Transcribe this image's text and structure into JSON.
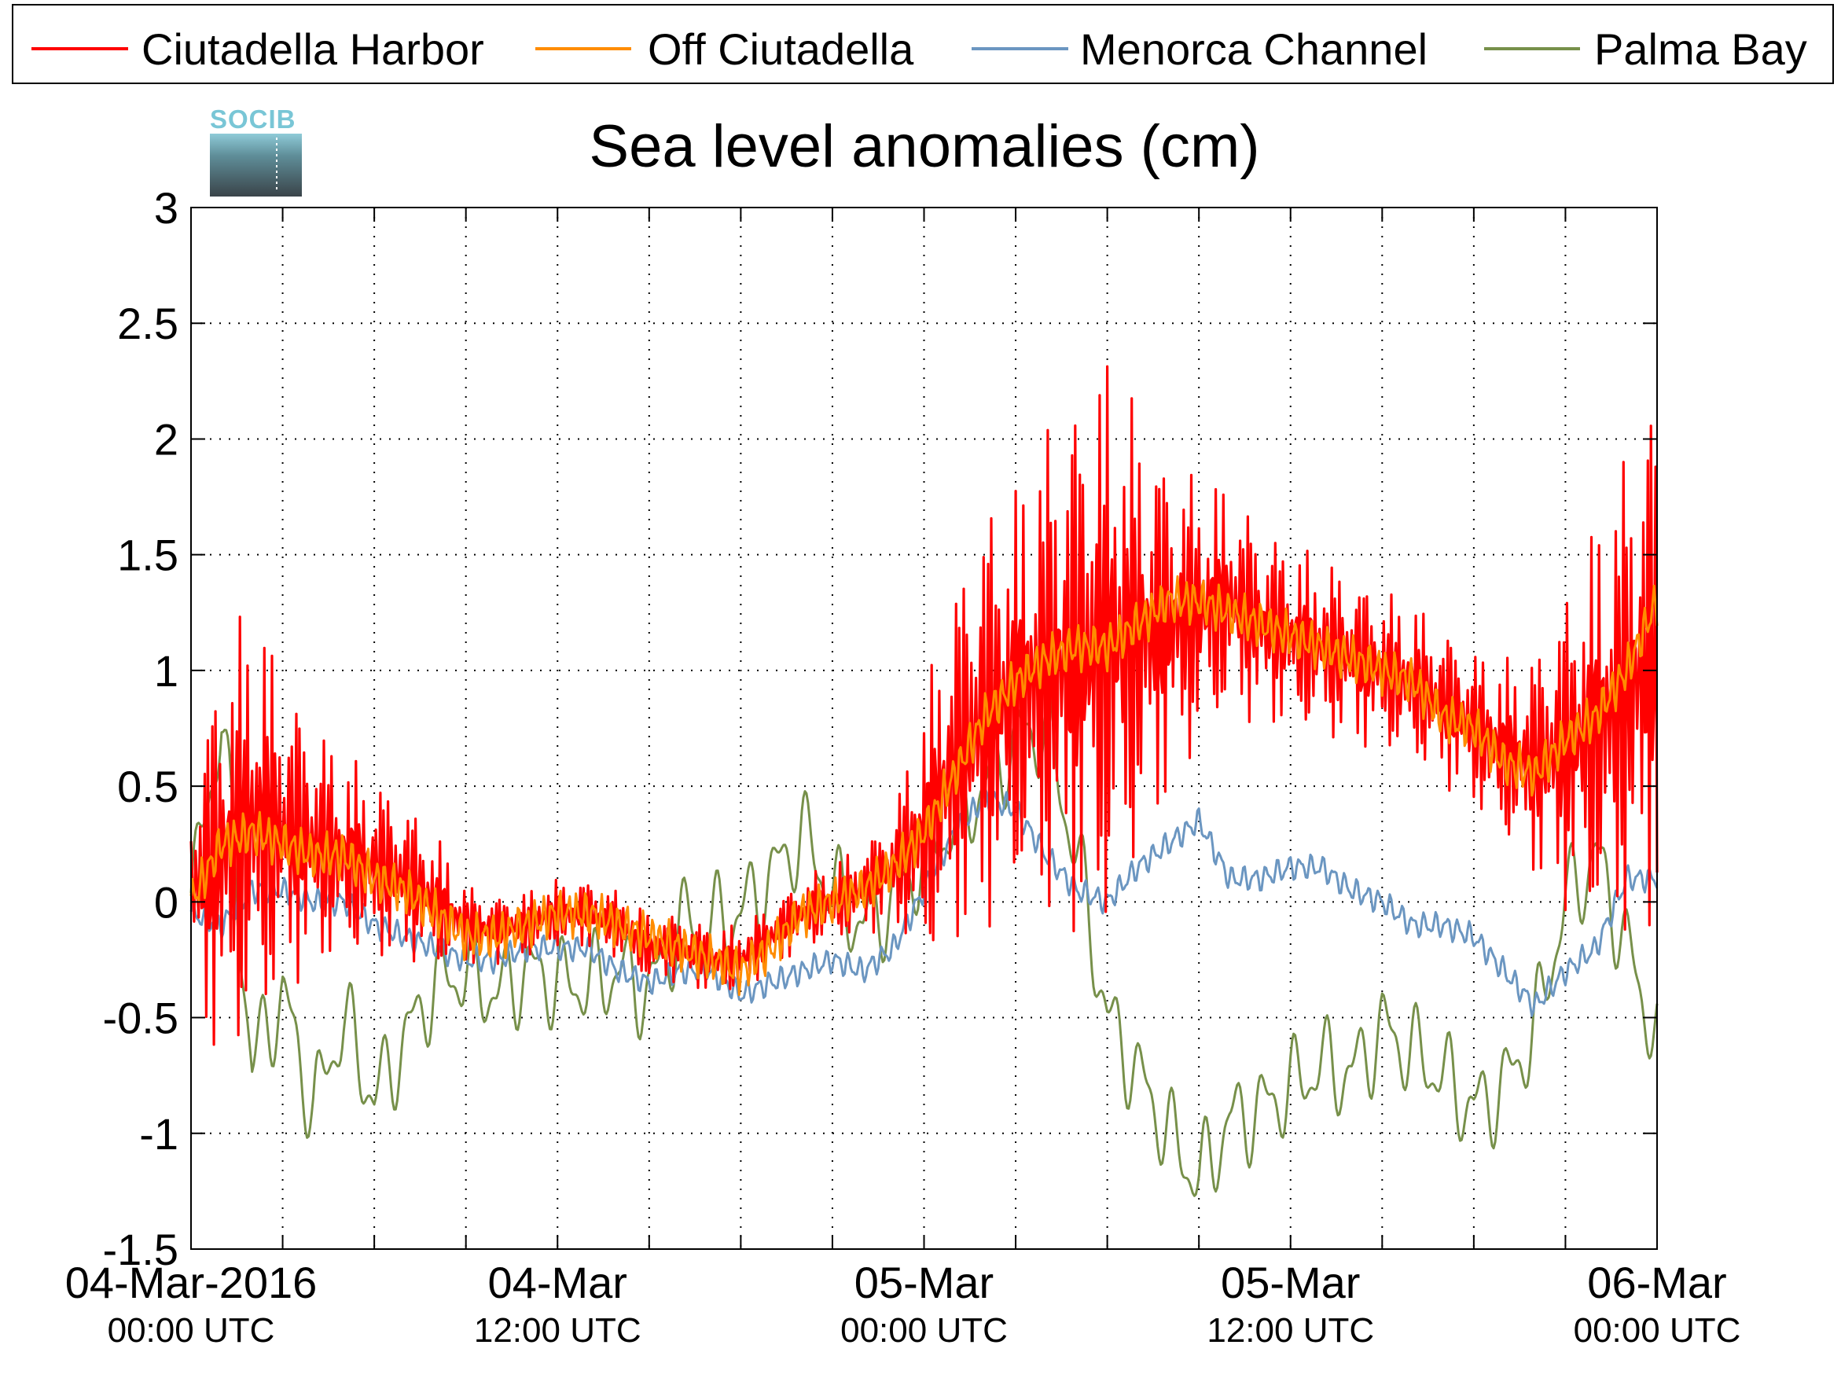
{
  "logo": {
    "text": "SOCIB",
    "color": "#79c6d6"
  },
  "chart_data": {
    "type": "line",
    "title": "Sea level anomalies (cm)",
    "xlabel": "",
    "ylabel": "",
    "x_range_hours": [
      0,
      48
    ],
    "ylim": [
      -1.5,
      3
    ],
    "yticks": [
      -1.5,
      -1,
      -0.5,
      0,
      0.5,
      1,
      1.5,
      2,
      2.5,
      3
    ],
    "ytick_labels": [
      "-1.5",
      "-1",
      "-0.5",
      "0",
      "0.5",
      "1",
      "1.5",
      "2",
      "2.5",
      "3"
    ],
    "x_minor_ticks_hours": [
      3,
      6,
      9,
      15,
      18,
      21,
      27,
      30,
      33,
      39,
      42,
      45
    ],
    "xticks": [
      {
        "hour": 0,
        "label": "04-Mar-2016",
        "sublabel": "00:00 UTC"
      },
      {
        "hour": 12,
        "label": "04-Mar",
        "sublabel": "12:00 UTC"
      },
      {
        "hour": 24,
        "label": "05-Mar",
        "sublabel": "00:00 UTC"
      },
      {
        "hour": 36,
        "label": "05-Mar",
        "sublabel": "12:00 UTC"
      },
      {
        "hour": 48,
        "label": "06-Mar",
        "sublabel": "00:00 UTC"
      }
    ],
    "grid": true,
    "legend_position": "top",
    "series": [
      {
        "name": "Ciutadella Harbor",
        "color": "#ff0000",
        "x_hours": [
          0,
          1,
          2,
          3,
          4,
          5,
          6,
          7,
          8,
          9,
          10,
          11,
          12,
          13,
          14,
          15,
          16,
          17,
          18,
          19,
          20,
          21,
          22,
          23,
          24,
          25,
          26,
          27,
          28,
          29,
          30,
          31,
          32,
          33,
          34,
          35,
          36,
          37,
          38,
          39,
          40,
          41,
          42,
          43,
          44,
          45,
          46,
          47,
          48
        ],
        "mean": [
          0.05,
          0.2,
          0.35,
          0.3,
          0.25,
          0.2,
          0.15,
          0.1,
          0.0,
          -0.1,
          -0.12,
          -0.1,
          -0.05,
          -0.05,
          -0.1,
          -0.2,
          -0.2,
          -0.25,
          -0.25,
          -0.15,
          -0.05,
          0.0,
          0.05,
          0.15,
          0.3,
          0.6,
          0.8,
          0.9,
          1.0,
          1.05,
          1.1,
          1.15,
          1.2,
          1.25,
          1.3,
          1.2,
          1.15,
          1.1,
          1.05,
          1.0,
          0.95,
          0.85,
          0.75,
          0.65,
          0.6,
          0.65,
          0.75,
          0.9,
          1.1
        ],
        "amplitude": [
          0.55,
          0.9,
          1.0,
          0.7,
          0.55,
          0.45,
          0.4,
          0.35,
          0.3,
          0.18,
          0.15,
          0.15,
          0.15,
          0.15,
          0.15,
          0.15,
          0.15,
          0.15,
          0.15,
          0.15,
          0.15,
          0.18,
          0.2,
          0.25,
          0.6,
          0.8,
          0.95,
          0.9,
          1.1,
          1.2,
          1.3,
          1.0,
          0.75,
          0.6,
          0.5,
          0.45,
          0.4,
          0.4,
          0.38,
          0.35,
          0.35,
          0.35,
          0.35,
          0.4,
          0.5,
          0.7,
          0.9,
          1.1,
          1.2
        ]
      },
      {
        "name": "Off Ciutadella",
        "color": "#ff8c00",
        "x_hours": [
          0,
          1,
          2,
          3,
          4,
          5,
          6,
          7,
          8,
          9,
          10,
          11,
          12,
          13,
          14,
          15,
          16,
          17,
          18,
          19,
          20,
          21,
          22,
          23,
          24,
          25,
          26,
          27,
          28,
          29,
          30,
          31,
          32,
          33,
          34,
          35,
          36,
          37,
          38,
          39,
          40,
          41,
          42,
          43,
          44,
          45,
          46,
          47,
          48
        ],
        "values": [
          0.0,
          0.25,
          0.3,
          0.25,
          0.2,
          0.2,
          0.1,
          0.05,
          -0.05,
          -0.15,
          -0.15,
          -0.1,
          -0.05,
          -0.05,
          -0.1,
          -0.15,
          -0.2,
          -0.25,
          -0.3,
          -0.2,
          -0.05,
          0.0,
          0.05,
          0.15,
          0.3,
          0.55,
          0.8,
          0.95,
          1.05,
          1.1,
          1.1,
          1.2,
          1.3,
          1.3,
          1.25,
          1.2,
          1.15,
          1.1,
          1.05,
          1.0,
          0.95,
          0.8,
          0.75,
          0.6,
          0.55,
          0.7,
          0.8,
          1.0,
          1.3
        ]
      },
      {
        "name": "Menorca Channel",
        "color": "#6b96c1",
        "x_hours": [
          0,
          1,
          2,
          3,
          4,
          5,
          6,
          7,
          8,
          9,
          10,
          11,
          12,
          13,
          14,
          15,
          16,
          17,
          18,
          19,
          20,
          21,
          22,
          23,
          24,
          25,
          26,
          27,
          28,
          29,
          30,
          31,
          32,
          33,
          34,
          35,
          36,
          37,
          38,
          39,
          40,
          41,
          42,
          43,
          44,
          45,
          46,
          47,
          48
        ],
        "values": [
          -0.05,
          -0.1,
          0.05,
          0.05,
          0.0,
          0.0,
          -0.1,
          -0.15,
          -0.2,
          -0.25,
          -0.25,
          -0.2,
          -0.2,
          -0.2,
          -0.3,
          -0.35,
          -0.3,
          -0.3,
          -0.4,
          -0.35,
          -0.3,
          -0.25,
          -0.3,
          -0.2,
          0.05,
          0.3,
          0.45,
          0.4,
          0.2,
          0.05,
          0.0,
          0.15,
          0.25,
          0.35,
          0.1,
          0.1,
          0.15,
          0.15,
          0.05,
          0.0,
          -0.1,
          -0.1,
          -0.15,
          -0.3,
          -0.45,
          -0.3,
          -0.2,
          0.1,
          0.1
        ]
      },
      {
        "name": "Palma Bay",
        "color": "#77904a",
        "x_hours": [
          0,
          1,
          2,
          3,
          4,
          5,
          6,
          7,
          8,
          9,
          10,
          11,
          12,
          13,
          14,
          15,
          16,
          17,
          18,
          19,
          20,
          21,
          22,
          23,
          24,
          25,
          26,
          27,
          28,
          29,
          30,
          31,
          32,
          33,
          34,
          35,
          36,
          37,
          38,
          39,
          40,
          41,
          42,
          43,
          44,
          45,
          46,
          47,
          48
        ],
        "values": [
          0.0,
          0.8,
          -0.7,
          -0.4,
          -0.9,
          -0.5,
          -0.85,
          -0.6,
          -0.35,
          -0.3,
          -0.4,
          -0.3,
          -0.35,
          -0.35,
          -0.3,
          -0.4,
          -0.1,
          -0.1,
          -0.05,
          0.1,
          0.3,
          0.05,
          -0.1,
          0.0,
          0.2,
          0.35,
          0.5,
          0.7,
          0.75,
          0.2,
          -0.5,
          -0.75,
          -1.0,
          -1.2,
          -0.95,
          -0.9,
          -0.8,
          -0.7,
          -0.75,
          -0.55,
          -0.65,
          -0.75,
          -0.9,
          -0.8,
          -0.55,
          0.0,
          0.2,
          -0.2,
          -0.6
        ]
      }
    ]
  }
}
